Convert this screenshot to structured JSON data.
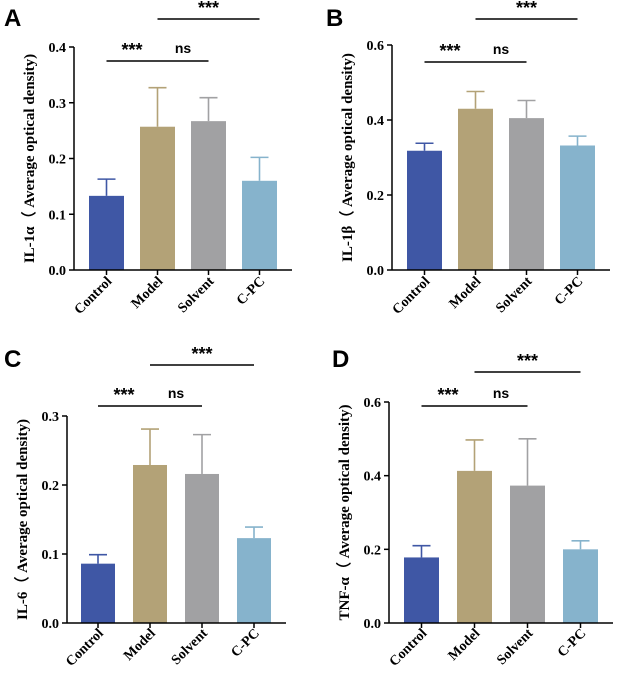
{
  "chart_data": [
    {
      "panel": "A",
      "type": "bar",
      "categories": [
        "Control",
        "Model",
        "Solvent",
        "C-PC"
      ],
      "values": [
        0.133,
        0.257,
        0.267,
        0.16
      ],
      "errors": [
        0.03,
        0.07,
        0.042,
        0.042
      ],
      "colors": [
        "#3f57a5",
        "#b3a277",
        "#a1a1a3",
        "#86b3cc"
      ],
      "ylabel": "IL-1α（ Average optical density)",
      "ylim": [
        0,
        0.4
      ],
      "yticks": [
        0.0,
        0.1,
        0.2,
        0.3,
        0.4
      ],
      "ytick_labels": [
        "0.0",
        "0.1",
        "0.2",
        "0.3",
        "0.4"
      ],
      "annotations": [
        {
          "from": 0,
          "to": 1,
          "label": "***",
          "level": 1
        },
        {
          "from": 1,
          "to": 2,
          "label": "ns",
          "level": 1
        },
        {
          "from": 1,
          "to": 3,
          "label": "***",
          "level": 2
        }
      ]
    },
    {
      "panel": "B",
      "type": "bar",
      "categories": [
        "Control",
        "Model",
        "Solvent",
        "C-PC"
      ],
      "values": [
        0.318,
        0.43,
        0.405,
        0.332
      ],
      "errors": [
        0.02,
        0.046,
        0.047,
        0.025
      ],
      "colors": [
        "#3f57a5",
        "#b3a277",
        "#a1a1a3",
        "#86b3cc"
      ],
      "ylabel": "IL-1β（ Average optical density)",
      "ylim": [
        0,
        0.6
      ],
      "yticks": [
        0.0,
        0.2,
        0.4,
        0.6
      ],
      "ytick_labels": [
        "0.0",
        "0.2",
        "0.4",
        "0.6"
      ],
      "annotations": [
        {
          "from": 0,
          "to": 1,
          "label": "***",
          "level": 1
        },
        {
          "from": 1,
          "to": 2,
          "label": "ns",
          "level": 1
        },
        {
          "from": 1,
          "to": 3,
          "label": "***",
          "level": 2
        }
      ]
    },
    {
      "panel": "C",
      "type": "bar",
      "categories": [
        "Control",
        "Model",
        "Solvent",
        "C-PC"
      ],
      "values": [
        0.086,
        0.229,
        0.216,
        0.123
      ],
      "errors": [
        0.013,
        0.052,
        0.057,
        0.016
      ],
      "colors": [
        "#3f57a5",
        "#b3a277",
        "#a1a1a3",
        "#86b3cc"
      ],
      "ylabel": "IL-6（ Average optical density)",
      "ylim": [
        0,
        0.3
      ],
      "yticks": [
        0.0,
        0.1,
        0.2,
        0.3
      ],
      "ytick_labels": [
        "0.0",
        "0.1",
        "0.2",
        "0.3"
      ],
      "annotations": [
        {
          "from": 0,
          "to": 1,
          "label": "***",
          "level": 1
        },
        {
          "from": 1,
          "to": 2,
          "label": "ns",
          "level": 1
        },
        {
          "from": 1,
          "to": 3,
          "label": "***",
          "level": 2
        }
      ]
    },
    {
      "panel": "D",
      "type": "bar",
      "categories": [
        "Control",
        "Model",
        "Solvent",
        "C-PC"
      ],
      "values": [
        0.178,
        0.413,
        0.373,
        0.2
      ],
      "errors": [
        0.032,
        0.084,
        0.127,
        0.023
      ],
      "colors": [
        "#3f57a5",
        "#b3a277",
        "#a1a1a3",
        "#86b3cc"
      ],
      "ylabel": "TNF-α（ Average optical density)",
      "ylim": [
        0,
        0.6
      ],
      "yticks": [
        0.0,
        0.2,
        0.4,
        0.6
      ],
      "ytick_labels": [
        "0.0",
        "0.2",
        "0.4",
        "0.6"
      ],
      "annotations": [
        {
          "from": 0,
          "to": 1,
          "label": "***",
          "level": 1
        },
        {
          "from": 1,
          "to": 2,
          "label": "ns",
          "level": 1
        },
        {
          "from": 1,
          "to": 3,
          "label": "***",
          "level": 2
        }
      ]
    }
  ]
}
